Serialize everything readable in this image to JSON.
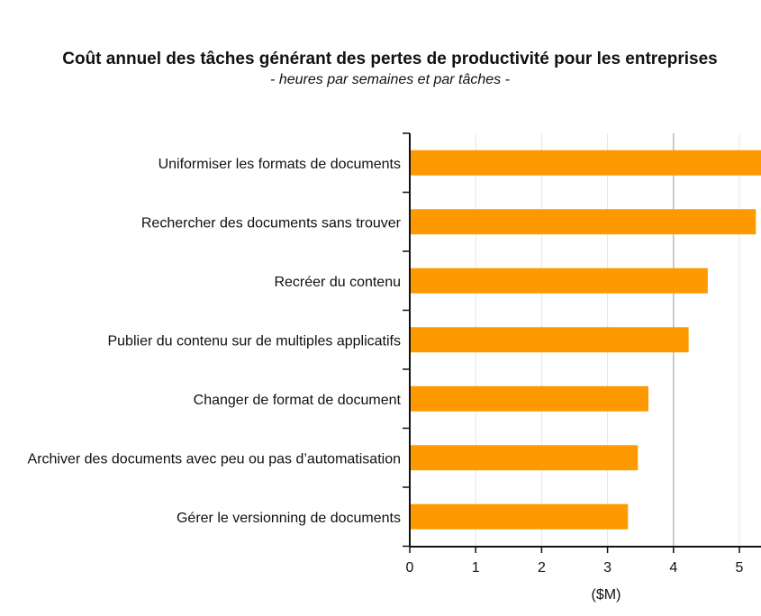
{
  "chart_data": {
    "type": "bar",
    "orientation": "horizontal",
    "title": "Coût annuel des tâches générant des pertes de productivité pour les entreprises",
    "subtitle": "- heures par semaines et par tâches -",
    "xlabel": "($M)",
    "categories": [
      "Uniformiser les formats de documents",
      "Rechercher des documents sans trouver",
      "Recréer du contenu",
      "Publier du contenu sur de multiples applicatifs",
      "Changer de format de document",
      "Archiver des documents avec peu ou pas d’automatisation",
      "Gérer le versionning de documents"
    ],
    "values": [
      5.4,
      5.25,
      4.52,
      4.23,
      3.62,
      3.46,
      3.31
    ],
    "xlim": [
      0,
      5.4
    ],
    "xticks": [
      "0",
      "1",
      "2",
      "3",
      "4",
      "5"
    ],
    "bar_color": "#ff9900",
    "grid": "vertical"
  }
}
